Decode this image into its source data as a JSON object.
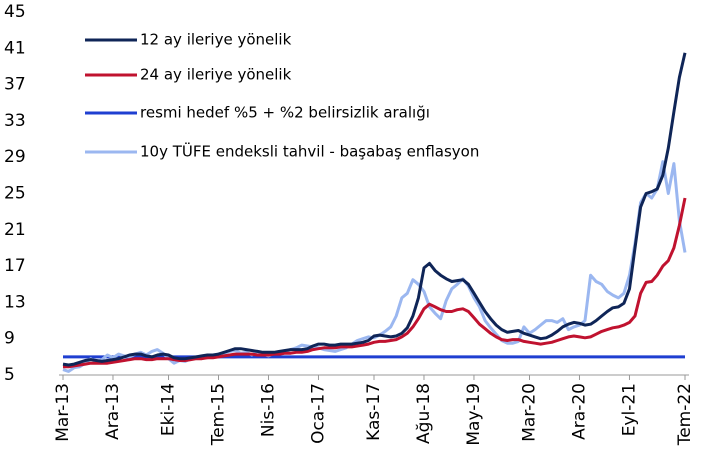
{
  "chart_data": {
    "type": "line",
    "categories": [
      "Mar-13",
      null,
      null,
      null,
      null,
      null,
      null,
      null,
      null,
      "Ara-13",
      null,
      null,
      null,
      null,
      null,
      null,
      null,
      null,
      null,
      "Eki-14",
      null,
      null,
      null,
      null,
      null,
      null,
      null,
      null,
      "Tem-15",
      null,
      null,
      null,
      null,
      null,
      null,
      null,
      null,
      "Nis-16",
      null,
      null,
      null,
      null,
      null,
      null,
      null,
      null,
      "Oca-17",
      null,
      null,
      null,
      null,
      null,
      null,
      null,
      null,
      null,
      "Kas-17",
      null,
      null,
      null,
      null,
      null,
      null,
      null,
      null,
      "Ağu-18",
      null,
      null,
      null,
      null,
      null,
      null,
      null,
      null,
      "May-19",
      null,
      null,
      null,
      null,
      null,
      null,
      null,
      null,
      null,
      "Mar-20",
      null,
      null,
      null,
      null,
      null,
      null,
      null,
      null,
      "Ara-20",
      null,
      null,
      null,
      null,
      null,
      null,
      null,
      null,
      "Eyl-21",
      null,
      null,
      null,
      null,
      null,
      null,
      null,
      null,
      null,
      "Tem-22"
    ],
    "series": [
      {
        "name": "12 ay ileriye yönelik",
        "color": "#0f2557",
        "values": [
          6.2,
          6.1,
          6.2,
          6.4,
          6.6,
          6.7,
          6.6,
          6.5,
          6.6,
          6.7,
          6.8,
          7.0,
          7.2,
          7.3,
          7.3,
          7.1,
          7.0,
          7.2,
          7.3,
          7.2,
          6.9,
          6.8,
          6.8,
          6.9,
          7.0,
          7.1,
          7.2,
          7.2,
          7.3,
          7.5,
          7.7,
          7.9,
          7.9,
          7.8,
          7.7,
          7.6,
          7.5,
          7.5,
          7.5,
          7.6,
          7.7,
          7.8,
          7.8,
          7.8,
          7.9,
          8.2,
          8.4,
          8.4,
          8.3,
          8.3,
          8.4,
          8.4,
          8.4,
          8.5,
          8.6,
          8.8,
          9.3,
          9.4,
          9.3,
          9.2,
          9.3,
          9.6,
          10.2,
          11.5,
          13.5,
          16.8,
          17.3,
          16.5,
          16.0,
          15.6,
          15.3,
          15.4,
          15.5,
          15.0,
          14.0,
          13.0,
          12.0,
          11.2,
          10.5,
          10.0,
          9.7,
          9.8,
          9.9,
          9.6,
          9.4,
          9.2,
          9.0,
          9.1,
          9.4,
          9.8,
          10.3,
          10.6,
          10.8,
          10.7,
          10.5,
          10.6,
          11.0,
          11.5,
          12.0,
          12.4,
          12.5,
          12.9,
          14.5,
          19.0,
          23.5,
          25.0,
          25.2,
          25.5,
          27.0,
          30.0,
          34.0,
          37.8,
          40.5
        ]
      },
      {
        "name": "24 ay ileriye yönelik",
        "color": "#c0122f",
        "values": [
          5.9,
          5.9,
          6.0,
          6.1,
          6.2,
          6.3,
          6.3,
          6.3,
          6.3,
          6.4,
          6.5,
          6.6,
          6.7,
          6.8,
          6.8,
          6.7,
          6.7,
          6.8,
          6.8,
          6.8,
          6.7,
          6.6,
          6.6,
          6.7,
          6.8,
          6.8,
          6.9,
          6.9,
          7.0,
          7.1,
          7.2,
          7.3,
          7.3,
          7.3,
          7.3,
          7.2,
          7.2,
          7.2,
          7.3,
          7.3,
          7.4,
          7.4,
          7.5,
          7.5,
          7.6,
          7.8,
          7.9,
          8.0,
          8.0,
          8.0,
          8.1,
          8.1,
          8.1,
          8.2,
          8.3,
          8.4,
          8.6,
          8.7,
          8.7,
          8.8,
          8.9,
          9.2,
          9.6,
          10.3,
          11.2,
          12.3,
          12.8,
          12.5,
          12.2,
          12.0,
          12.0,
          12.2,
          12.3,
          12.0,
          11.3,
          10.6,
          10.1,
          9.6,
          9.2,
          8.9,
          8.8,
          8.9,
          8.9,
          8.7,
          8.6,
          8.5,
          8.4,
          8.5,
          8.6,
          8.8,
          9.0,
          9.2,
          9.3,
          9.2,
          9.1,
          9.2,
          9.5,
          9.8,
          10.0,
          10.2,
          10.3,
          10.5,
          10.8,
          11.5,
          14.0,
          15.2,
          15.3,
          16.0,
          17.0,
          17.6,
          19.0,
          21.5,
          24.5
        ]
      },
      {
        "name": "resmi hedef %5 + %2 belirsizlik aralığı",
        "color": "#1f3fd1",
        "values": [
          7,
          7,
          7,
          7,
          7,
          7,
          7,
          7,
          7,
          7,
          7,
          7,
          7,
          7,
          7,
          7,
          7,
          7,
          7,
          7,
          7,
          7,
          7,
          7,
          7,
          7,
          7,
          7,
          7,
          7,
          7,
          7,
          7,
          7,
          7,
          7,
          7,
          7,
          7,
          7,
          7,
          7,
          7,
          7,
          7,
          7,
          7,
          7,
          7,
          7,
          7,
          7,
          7,
          7,
          7,
          7,
          7,
          7,
          7,
          7,
          7,
          7,
          7,
          7,
          7,
          7,
          7,
          7,
          7,
          7,
          7,
          7,
          7,
          7,
          7,
          7,
          7,
          7,
          7,
          7,
          7,
          7,
          7,
          7,
          7,
          7,
          7,
          7,
          7,
          7,
          7,
          7,
          7,
          7,
          7,
          7,
          7,
          7,
          7,
          7,
          7,
          7,
          7,
          7,
          7,
          7,
          7,
          7,
          7,
          7,
          7,
          7,
          7
        ]
      },
      {
        "name": "10y TÜFE endeksli tahvil - başabaş enflasyon",
        "color": "#9bb7f0",
        "values": [
          5.6,
          5.4,
          5.8,
          5.9,
          6.3,
          6.8,
          6.4,
          6.7,
          7.2,
          6.9,
          7.3,
          7.1,
          7.0,
          7.3,
          7.5,
          7.2,
          7.6,
          7.8,
          7.4,
          6.8,
          6.3,
          6.6,
          6.5,
          6.8,
          6.9,
          7.0,
          6.9,
          7.1,
          7.3,
          7.4,
          7.6,
          7.7,
          7.4,
          7.5,
          7.2,
          7.6,
          7.3,
          7.1,
          7.4,
          7.5,
          7.6,
          7.8,
          8.0,
          8.3,
          8.2,
          8.1,
          8.0,
          7.8,
          7.7,
          7.6,
          7.8,
          8.0,
          8.4,
          8.8,
          9.0,
          9.2,
          9.1,
          9.4,
          9.8,
          10.3,
          11.5,
          13.5,
          14.0,
          15.5,
          15.0,
          14.2,
          12.5,
          11.8,
          11.2,
          13.2,
          14.5,
          15.0,
          15.6,
          14.8,
          13.5,
          12.5,
          11.0,
          10.2,
          9.5,
          8.8,
          8.5,
          8.5,
          8.7,
          10.3,
          9.6,
          10.0,
          10.5,
          11.0,
          11.0,
          10.8,
          11.2,
          10.0,
          10.3,
          10.5,
          11.0,
          16.0,
          15.3,
          15.0,
          14.2,
          13.8,
          13.5,
          14.0,
          16.0,
          19.5,
          24.0,
          25.0,
          24.5,
          25.5,
          28.5,
          25.0,
          28.3,
          22.0,
          18.5
        ]
      }
    ],
    "ylim": [
      5,
      45
    ],
    "yticks": [
      5,
      9,
      13,
      17,
      21,
      25,
      29,
      33,
      37,
      41,
      45
    ],
    "grid": false,
    "legend": "upper left"
  }
}
